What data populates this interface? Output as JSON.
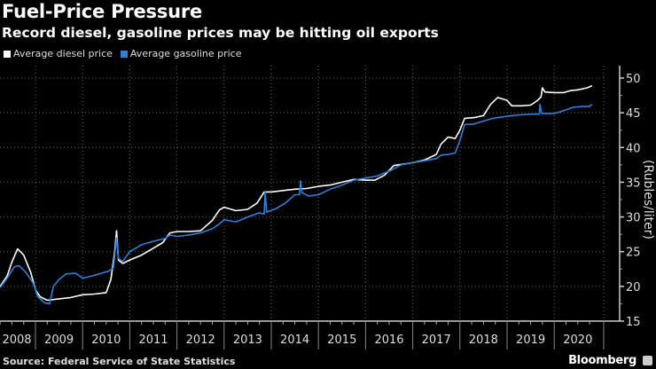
{
  "chart_data": {
    "type": "line",
    "title": "Fuel-Price Pressure",
    "subtitle": "Record diesel, gasoline prices may be hitting oil exports",
    "ylabel": "(Rubles/liter)",
    "xlabel": "",
    "ylim": [
      15,
      50
    ],
    "yticks": [
      15,
      20,
      25,
      30,
      35,
      40,
      45,
      50
    ],
    "xlim": [
      2008.25,
      2020.95
    ],
    "xticks": [
      "2008",
      "2009",
      "2010",
      "2011",
      "2012",
      "2013",
      "2014",
      "2015",
      "2016",
      "2017",
      "2018",
      "2019",
      "2020"
    ],
    "grid": true,
    "legend_position": "top-left",
    "series": [
      {
        "name": "Average diesel price",
        "color": "#ffffff",
        "points": [
          [
            2008.25,
            20.0
          ],
          [
            2008.4,
            21.5
          ],
          [
            2008.5,
            23.5
          ],
          [
            2008.62,
            25.4
          ],
          [
            2008.75,
            24.5
          ],
          [
            2008.9,
            22.0
          ],
          [
            2009.0,
            19.5
          ],
          [
            2009.1,
            18.5
          ],
          [
            2009.25,
            18.0
          ],
          [
            2009.5,
            18.2
          ],
          [
            2009.75,
            18.4
          ],
          [
            2010.0,
            18.8
          ],
          [
            2010.25,
            18.9
          ],
          [
            2010.5,
            19.1
          ],
          [
            2010.6,
            21.0
          ],
          [
            2010.68,
            25.0
          ],
          [
            2010.72,
            28.0
          ],
          [
            2010.76,
            23.8
          ],
          [
            2010.85,
            23.3
          ],
          [
            2011.0,
            23.8
          ],
          [
            2011.25,
            24.5
          ],
          [
            2011.5,
            25.5
          ],
          [
            2011.7,
            26.3
          ],
          [
            2011.85,
            27.7
          ],
          [
            2012.0,
            27.9
          ],
          [
            2012.25,
            27.9
          ],
          [
            2012.5,
            28.0
          ],
          [
            2012.75,
            29.5
          ],
          [
            2012.9,
            31.0
          ],
          [
            2013.0,
            31.4
          ],
          [
            2013.25,
            30.9
          ],
          [
            2013.5,
            31.1
          ],
          [
            2013.7,
            32.0
          ],
          [
            2013.85,
            33.6
          ],
          [
            2014.0,
            33.6
          ],
          [
            2014.25,
            33.8
          ],
          [
            2014.5,
            34.0
          ],
          [
            2014.75,
            34.1
          ],
          [
            2015.0,
            34.4
          ],
          [
            2015.25,
            34.6
          ],
          [
            2015.5,
            35.0
          ],
          [
            2015.75,
            35.4
          ],
          [
            2016.0,
            35.3
          ],
          [
            2016.2,
            35.3
          ],
          [
            2016.4,
            36.0
          ],
          [
            2016.6,
            37.4
          ],
          [
            2016.8,
            37.6
          ],
          [
            2017.0,
            37.8
          ],
          [
            2017.25,
            38.2
          ],
          [
            2017.5,
            39.0
          ],
          [
            2017.6,
            40.5
          ],
          [
            2017.75,
            41.5
          ],
          [
            2017.9,
            41.3
          ],
          [
            2018.0,
            42.5
          ],
          [
            2018.1,
            44.2
          ],
          [
            2018.3,
            44.3
          ],
          [
            2018.5,
            44.6
          ],
          [
            2018.65,
            46.2
          ],
          [
            2018.8,
            47.2
          ],
          [
            2019.0,
            46.8
          ],
          [
            2019.1,
            46.0
          ],
          [
            2019.3,
            46.0
          ],
          [
            2019.5,
            46.1
          ],
          [
            2019.65,
            46.8
          ],
          [
            2019.72,
            47.3
          ],
          [
            2019.75,
            48.6
          ],
          [
            2019.8,
            48.0
          ],
          [
            2020.0,
            47.9
          ],
          [
            2020.2,
            47.9
          ],
          [
            2020.35,
            48.2
          ],
          [
            2020.5,
            48.3
          ],
          [
            2020.7,
            48.6
          ],
          [
            2020.8,
            48.9
          ]
        ]
      },
      {
        "name": "Average gasoline price",
        "color": "#2f7fd8",
        "points": [
          [
            2008.25,
            19.8
          ],
          [
            2008.4,
            21.2
          ],
          [
            2008.55,
            22.8
          ],
          [
            2008.65,
            23.0
          ],
          [
            2008.8,
            22.0
          ],
          [
            2008.95,
            20.5
          ],
          [
            2009.05,
            18.5
          ],
          [
            2009.2,
            17.6
          ],
          [
            2009.3,
            17.5
          ],
          [
            2009.38,
            20.0
          ],
          [
            2009.5,
            21.0
          ],
          [
            2009.65,
            21.8
          ],
          [
            2009.85,
            21.9
          ],
          [
            2010.0,
            21.2
          ],
          [
            2010.2,
            21.5
          ],
          [
            2010.4,
            21.9
          ],
          [
            2010.55,
            22.2
          ],
          [
            2010.65,
            22.6
          ],
          [
            2010.72,
            27.0
          ],
          [
            2010.76,
            24.0
          ],
          [
            2010.85,
            23.6
          ],
          [
            2011.0,
            25.0
          ],
          [
            2011.25,
            26.0
          ],
          [
            2011.5,
            26.5
          ],
          [
            2011.75,
            26.9
          ],
          [
            2011.85,
            27.4
          ],
          [
            2012.0,
            27.2
          ],
          [
            2012.25,
            27.4
          ],
          [
            2012.5,
            27.7
          ],
          [
            2012.75,
            28.3
          ],
          [
            2012.9,
            29.0
          ],
          [
            2013.0,
            29.6
          ],
          [
            2013.25,
            29.3
          ],
          [
            2013.5,
            30.0
          ],
          [
            2013.75,
            30.6
          ],
          [
            2013.85,
            30.4
          ],
          [
            2013.87,
            33.6
          ],
          [
            2013.9,
            30.7
          ],
          [
            2014.1,
            31.2
          ],
          [
            2014.3,
            32.0
          ],
          [
            2014.5,
            33.2
          ],
          [
            2014.6,
            33.2
          ],
          [
            2014.62,
            35.2
          ],
          [
            2014.65,
            33.5
          ],
          [
            2014.8,
            33.0
          ],
          [
            2015.0,
            33.2
          ],
          [
            2015.25,
            34.0
          ],
          [
            2015.5,
            34.6
          ],
          [
            2015.75,
            35.3
          ],
          [
            2016.0,
            35.6
          ],
          [
            2016.25,
            35.9
          ],
          [
            2016.5,
            36.6
          ],
          [
            2016.75,
            37.5
          ],
          [
            2017.0,
            37.8
          ],
          [
            2017.25,
            38.1
          ],
          [
            2017.5,
            38.4
          ],
          [
            2017.6,
            38.9
          ],
          [
            2017.75,
            39.0
          ],
          [
            2017.9,
            39.2
          ],
          [
            2018.0,
            41.0
          ],
          [
            2018.1,
            43.3
          ],
          [
            2018.3,
            43.4
          ],
          [
            2018.5,
            43.8
          ],
          [
            2018.7,
            44.2
          ],
          [
            2019.0,
            44.5
          ],
          [
            2019.25,
            44.7
          ],
          [
            2019.5,
            44.8
          ],
          [
            2019.68,
            44.8
          ],
          [
            2019.7,
            46.2
          ],
          [
            2019.73,
            44.9
          ],
          [
            2020.0,
            44.9
          ],
          [
            2020.2,
            45.3
          ],
          [
            2020.4,
            45.8
          ],
          [
            2020.6,
            45.9
          ],
          [
            2020.75,
            45.9
          ],
          [
            2020.8,
            46.2
          ]
        ]
      }
    ]
  },
  "header": {
    "title": "Fuel-Price Pressure",
    "subtitle": "Record diesel, gasoline prices may be hitting oil exports"
  },
  "legend": [
    {
      "label": "Average diesel price",
      "color": "#ffffff"
    },
    {
      "label": "Average gasoline price",
      "color": "#2f7fd8"
    }
  ],
  "footer": {
    "source": "Source: Federal Service of State Statistics",
    "brand": "Bloomberg"
  }
}
